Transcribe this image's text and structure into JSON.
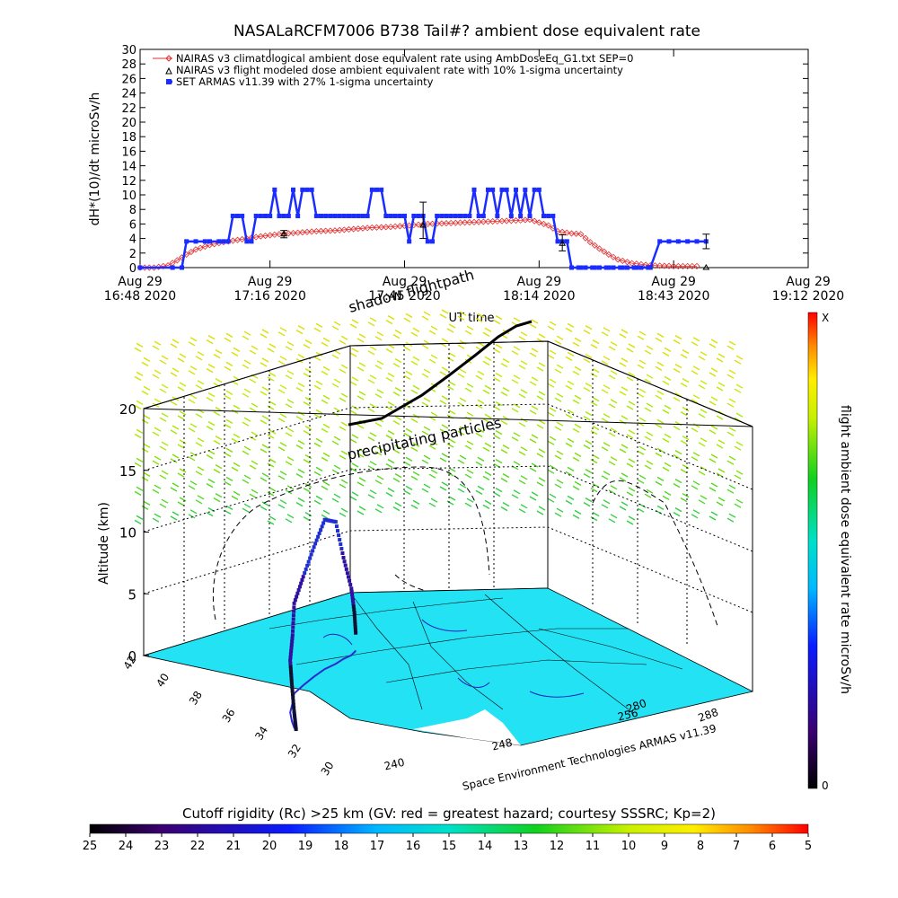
{
  "colors": {
    "nairas_climatological": "#e03030",
    "nairas_modeled": "#000000",
    "armas": "#1a2cff",
    "map_fill": "#22e2f4",
    "flightpath": "#000000"
  },
  "chart_data": [
    {
      "type": "line",
      "title": "NASALaRCFM7006  B738 Tail#? ambient dose equivalent rate",
      "ylabel": "dH*(10)/dt microSv/h",
      "xlabel": "UT time",
      "ylim": [
        0,
        30
      ],
      "yticks": [
        0,
        2,
        4,
        6,
        8,
        10,
        12,
        14,
        16,
        18,
        20,
        22,
        24,
        26,
        28,
        30
      ],
      "xticks": [
        {
          "t": 0,
          "l1": "Aug 29",
          "l2": "16:48 2020"
        },
        {
          "t": 28,
          "l1": "Aug 29",
          "l2": "17:16 2020"
        },
        {
          "t": 57,
          "l1": "Aug 29",
          "l2": "17:45 2020"
        },
        {
          "t": 86,
          "l1": "Aug 29",
          "l2": "18:14 2020"
        },
        {
          "t": 115,
          "l1": "Aug 29",
          "l2": "18:43 2020"
        },
        {
          "t": 144,
          "l1": "Aug 29",
          "l2": "19:12 2020"
        }
      ],
      "xlim_minutes": [
        0,
        144
      ],
      "series": [
        {
          "name": "NAIRAS v3 climatological ambient dose equivalent rate using AmbDoseEq_G1.txt SEP=0",
          "marker": "diamond",
          "points": [
            [
              0,
              0
            ],
            [
              3,
              0
            ],
            [
              6,
              0.3
            ],
            [
              8,
              1
            ],
            [
              10,
              1.8
            ],
            [
              12,
              2.5
            ],
            [
              15,
              3.1
            ],
            [
              18,
              3.5
            ],
            [
              22,
              3.9
            ],
            [
              26,
              4.3
            ],
            [
              30,
              4.6
            ],
            [
              34,
              4.8
            ],
            [
              38,
              5
            ],
            [
              42,
              5.1
            ],
            [
              46,
              5.3
            ],
            [
              50,
              5.5
            ],
            [
              54,
              5.6
            ],
            [
              58,
              5.8
            ],
            [
              62,
              6
            ],
            [
              66,
              6.1
            ],
            [
              70,
              6.2
            ],
            [
              74,
              6.3
            ],
            [
              78,
              6.4
            ],
            [
              82,
              6.5
            ],
            [
              84,
              6.6
            ],
            [
              88,
              5.8
            ],
            [
              90,
              5
            ],
            [
              93,
              4.7
            ],
            [
              95,
              4.6
            ],
            [
              97,
              3.5
            ],
            [
              99,
              2.6
            ],
            [
              101,
              1.8
            ],
            [
              103,
              1.1
            ],
            [
              106,
              0.6
            ],
            [
              110,
              0.3
            ],
            [
              115,
              0.2
            ],
            [
              120,
              0.2
            ]
          ]
        },
        {
          "name": "NAIRAS v3 flight modeled dose ambient equivalent rate with 10% 1-sigma uncertainty",
          "marker": "triangle",
          "points": [
            [
              31,
              4.6,
              0.5
            ],
            [
              61,
              5.8,
              0.6
            ],
            [
              91,
              3.3,
              0.4
            ],
            [
              122,
              0,
              0.2
            ]
          ]
        },
        {
          "name": "SET ARMAS v11.39 with 27% 1-sigma uncertainty",
          "marker": "square",
          "points": [
            [
              0,
              0
            ],
            [
              7,
              0
            ],
            [
              9,
              0
            ],
            [
              10,
              3.6
            ],
            [
              12,
              3.6
            ],
            [
              14,
              3.6
            ],
            [
              15,
              3.6
            ],
            [
              17,
              3.6
            ],
            [
              18,
              3.6
            ],
            [
              19,
              3.6
            ],
            [
              20,
              7.1
            ],
            [
              21,
              7.1
            ],
            [
              22,
              7.1
            ],
            [
              23,
              3.6
            ],
            [
              24,
              3.6
            ],
            [
              25,
              7.1
            ],
            [
              26,
              7.1
            ],
            [
              27,
              7.1
            ],
            [
              28,
              7.1
            ],
            [
              29,
              10.7
            ],
            [
              30,
              7.1
            ],
            [
              31,
              7.1
            ],
            [
              32,
              7.1
            ],
            [
              33,
              10.7
            ],
            [
              34,
              7.1
            ],
            [
              35,
              10.7
            ],
            [
              36,
              10.7
            ],
            [
              37,
              10.7
            ],
            [
              38,
              7.1
            ],
            [
              39,
              7.1
            ],
            [
              40,
              7.1
            ],
            [
              41,
              7.1
            ],
            [
              42,
              7.1
            ],
            [
              43,
              7.1
            ],
            [
              44,
              7.1
            ],
            [
              45,
              7.1
            ],
            [
              46,
              7.1
            ],
            [
              47,
              7.1
            ],
            [
              48,
              7.1
            ],
            [
              49,
              7.1
            ],
            [
              50,
              10.7
            ],
            [
              51,
              10.7
            ],
            [
              52,
              10.7
            ],
            [
              53,
              7.1
            ],
            [
              54,
              7.1
            ],
            [
              55,
              7.1
            ],
            [
              56,
              7.1
            ],
            [
              57,
              7.1
            ],
            [
              58,
              3.6
            ],
            [
              59,
              7.1
            ],
            [
              60,
              7.1
            ],
            [
              61,
              7.1
            ],
            [
              62,
              3.6
            ],
            [
              63,
              3.6
            ],
            [
              64,
              7.1
            ],
            [
              65,
              7.1
            ],
            [
              66,
              7.1
            ],
            [
              67,
              7.1
            ],
            [
              68,
              7.1
            ],
            [
              69,
              7.1
            ],
            [
              70,
              7.1
            ],
            [
              71,
              7.1
            ],
            [
              72,
              10.7
            ],
            [
              73,
              7.1
            ],
            [
              74,
              7.1
            ],
            [
              75,
              10.7
            ],
            [
              76,
              10.7
            ],
            [
              77,
              7.1
            ],
            [
              78,
              10.7
            ],
            [
              79,
              10.7
            ],
            [
              80,
              7.1
            ],
            [
              81,
              10.7
            ],
            [
              82,
              7.1
            ],
            [
              83,
              10.7
            ],
            [
              84,
              7.1
            ],
            [
              85,
              10.7
            ],
            [
              86,
              10.7
            ],
            [
              87,
              7.1
            ],
            [
              88,
              7.1
            ],
            [
              89,
              7.1
            ],
            [
              90,
              3.6
            ],
            [
              91,
              3.6
            ],
            [
              92,
              3.6
            ],
            [
              93,
              0
            ],
            [
              95,
              0
            ],
            [
              98,
              0
            ],
            [
              101,
              0
            ],
            [
              104,
              0
            ],
            [
              107,
              0
            ],
            [
              110,
              0
            ],
            [
              112,
              3.6
            ],
            [
              114,
              3.6
            ],
            [
              116,
              3.6
            ],
            [
              118,
              3.6
            ],
            [
              120,
              3.6
            ],
            [
              122,
              3.6
            ]
          ]
        }
      ],
      "error_bars": [
        [
          31,
          4.6,
          0.5
        ],
        [
          61,
          6.5,
          2.5
        ],
        [
          91,
          3.4,
          1.1
        ],
        [
          122,
          3.6,
          1
        ]
      ]
    },
    {
      "type": "scatter",
      "subtype": "3d-flightpath",
      "zlabel": "Altitude (km)",
      "zticks": [
        0,
        5,
        10,
        15,
        20
      ],
      "lat_ticks": [
        42,
        40,
        38,
        36,
        34,
        32,
        30
      ],
      "lon_ticks_front": [
        240,
        248,
        256
      ],
      "lon_ticks_side": [
        280,
        288
      ],
      "annotation_shadow": "shadow flightpath",
      "annotation_particles": "precipitating particles",
      "credit": "Space Environment Technologies ARMAS v11.39",
      "path_lat_lon_alt": [
        [
          33.9,
          241.6,
          0.1
        ],
        [
          34.2,
          242,
          1.3
        ],
        [
          34.8,
          243,
          3
        ],
        [
          35.6,
          244.5,
          4.2
        ],
        [
          36.4,
          246.5,
          5.5
        ],
        [
          37.2,
          248.4,
          7.3
        ],
        [
          37.8,
          250.8,
          8.8
        ],
        [
          38.4,
          253.4,
          10.5
        ],
        [
          38.9,
          255.8,
          12.1
        ],
        [
          39.2,
          257.8,
          11.5
        ],
        [
          39.5,
          259.4,
          8.2
        ],
        [
          39.7,
          260.8,
          5.4
        ],
        [
          39.9,
          261.6,
          3.2
        ],
        [
          40,
          262,
          1.2
        ]
      ]
    }
  ],
  "colorbar_right": {
    "label": "flight ambient dose equivalent rate microSv/h",
    "top_label": "X",
    "bottom_label": "0"
  },
  "colorbar_bottom": {
    "title": "Cutoff rigidity (Rc) >25 km (GV: red = greatest hazard; courtesy SSSRC; Kp=2)",
    "ticks": [
      "25",
      "24",
      "23",
      "22",
      "21",
      "20",
      "19",
      "18",
      "17",
      "16",
      "15",
      "14",
      "13",
      "12",
      "11",
      "10",
      "9",
      "8",
      "7",
      "6",
      "5"
    ]
  }
}
